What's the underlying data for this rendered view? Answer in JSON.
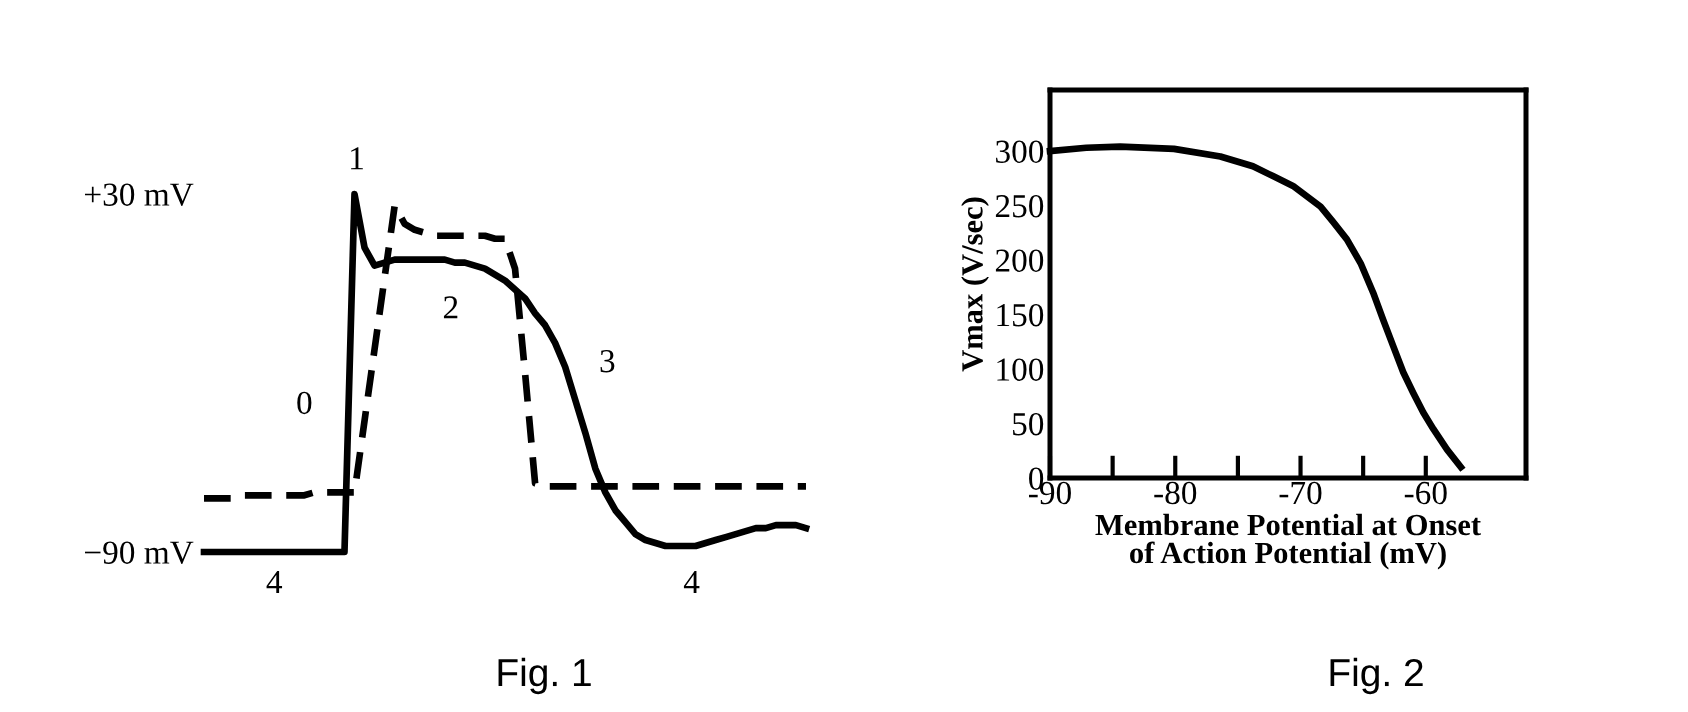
{
  "chart_data": [
    {
      "type": "line",
      "title": "Fig. 1",
      "categories": [
        null,
        null,
        null,
        null,
        null,
        null,
        null,
        null,
        null,
        null,
        null,
        null,
        null,
        null,
        null,
        null,
        null,
        null,
        null,
        null,
        null,
        null,
        null,
        null,
        null,
        null,
        null,
        null,
        null,
        null,
        null,
        null,
        null,
        null,
        null,
        null,
        null,
        null,
        null,
        null,
        null,
        null,
        null,
        null,
        null,
        null,
        null,
        null,
        null,
        null,
        null,
        null,
        null,
        null,
        null,
        null,
        null,
        null,
        null,
        null,
        null
      ],
      "series": [
        {
          "color": "#000000",
          "line_style": "solid",
          "values": [
            -90,
            -90,
            -90,
            -90,
            -90,
            -90,
            -90,
            -90,
            -90,
            -90,
            -90,
            -90,
            -90,
            -90,
            -90,
            30,
            12,
            6,
            7,
            8,
            8,
            8,
            8,
            8,
            8,
            7,
            7,
            6,
            5,
            3,
            1,
            -2,
            -5,
            -10,
            -14,
            -20,
            -28,
            -39,
            -50,
            -62,
            -70,
            -76,
            -80,
            -84,
            -86,
            -87,
            -88,
            -88,
            -88,
            -88,
            -87,
            -86,
            -85,
            -84,
            -83,
            -82,
            -82,
            -81,
            -81,
            -81,
            -82
          ]
        },
        {
          "color": "#000000",
          "line_style": "dashed",
          "values": [
            -72,
            -72,
            -72,
            -72,
            -71,
            -71,
            -71,
            -71,
            -71,
            -71,
            -71,
            -70,
            -70,
            -70,
            -70,
            -70,
            -46,
            -22,
            2,
            26,
            20,
            18,
            17,
            16,
            16,
            16,
            16,
            16,
            16,
            15,
            15,
            5,
            -30,
            -67,
            -68,
            -68,
            -68,
            -68,
            -68,
            -68,
            -68,
            -68,
            -68,
            -68,
            -68,
            -68,
            -68,
            -68,
            -68,
            -68,
            -68,
            -68,
            -68,
            -68,
            -68,
            -68,
            -68,
            -68,
            -68,
            -68,
            -68
          ]
        }
      ],
      "ylim": [
        -90,
        30
      ],
      "yticks": [
        {
          "value": 30,
          "label": "+30 mV"
        },
        {
          "value": -90,
          "label": "−90 mV"
        }
      ],
      "tick_labels": "y",
      "grid": false,
      "legend": false,
      "annotations": [
        "0",
        "1",
        "2",
        "3",
        "4",
        "4"
      ]
    },
    {
      "type": "line",
      "title": "Fig. 2",
      "xlabel": "Membrane Potential at Onset\nof Action Potential (mV)",
      "ylabel": "Vmax (V/sec)",
      "x": [
        -90,
        -87.1,
        -84.4,
        -80.1,
        -76.4,
        -73.8,
        -72.2,
        -70.6,
        -68.4,
        -67.4,
        -66.3,
        -65.2,
        -64.2,
        -63.4,
        -62.6,
        -61.8,
        -61,
        -60.2,
        -59.4,
        -58.3,
        -57.2
      ],
      "series": [
        {
          "color": "#000000",
          "line_style": "solid",
          "values": [
            300,
            303,
            304,
            302,
            295,
            286,
            277,
            268,
            249,
            235,
            219,
            197,
            170,
            145,
            121,
            97,
            78,
            60,
            45,
            26,
            10
          ]
        }
      ],
      "xlim": [
        -90,
        -52
      ],
      "xticks": [
        -90,
        {
          "value": -85,
          "label": null
        },
        -80,
        {
          "value": -75,
          "label": null
        },
        -70,
        {
          "value": -65,
          "label": null
        },
        -60
      ],
      "ylim": [
        0,
        356
      ],
      "yticks": [
        0,
        50,
        100,
        150,
        200,
        250,
        300
      ],
      "grid": false,
      "legend": false
    }
  ]
}
